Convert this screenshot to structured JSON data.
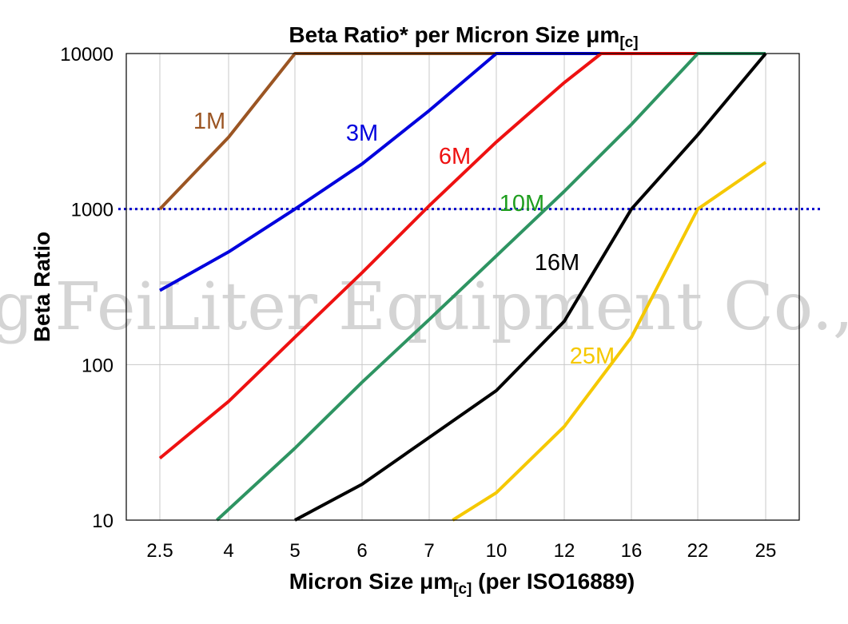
{
  "watermark": "g FeiLiter Equipment Co.,",
  "chart_data": {
    "type": "line",
    "title_main": "Beta Ratio* per Micron Size ",
    "title_unit": "μm",
    "title_sub": "[c]",
    "xlabel_main": "Micron Size ",
    "xlabel_unit": "μm",
    "xlabel_sub": "[c]",
    "xlabel_tail": " (per ISO16889)",
    "ylabel": "Beta Ratio",
    "y_scale": "log",
    "ylim": [
      10,
      10000
    ],
    "y_ticks": [
      "10",
      "100",
      "1000",
      "10000"
    ],
    "y_tick_values": [
      10,
      100,
      1000,
      10000
    ],
    "categories": [
      "2.5",
      "4",
      "5",
      "6",
      "7",
      "10",
      "12",
      "16",
      "22",
      "25"
    ],
    "x_axis_note": "categorical positions 0-9",
    "grid": true,
    "reference_line": {
      "value": 1000,
      "color": "#0000cc",
      "style": "dotted"
    },
    "series": [
      {
        "name": "1M",
        "color": "#9b5523",
        "points": [
          [
            0,
            1000
          ],
          [
            1,
            2900
          ],
          [
            2,
            10000
          ],
          [
            5,
            10000
          ]
        ]
      },
      {
        "name": "3M",
        "color": "#0000dd",
        "points": [
          [
            0,
            300
          ],
          [
            1,
            530
          ],
          [
            2,
            1000
          ],
          [
            3,
            1950
          ],
          [
            4,
            4300
          ],
          [
            5,
            10000
          ],
          [
            8,
            10000
          ]
        ]
      },
      {
        "name": "6M",
        "color": "#ee1111",
        "points": [
          [
            0,
            25
          ],
          [
            1,
            58
          ],
          [
            2,
            150
          ],
          [
            3,
            390
          ],
          [
            4,
            1050
          ],
          [
            5,
            2700
          ],
          [
            6,
            6500
          ],
          [
            6.55,
            10000
          ],
          [
            9,
            10000
          ]
        ]
      },
      {
        "name": "10M",
        "color": "#2e9462",
        "points": [
          [
            0.83,
            10
          ],
          [
            2,
            29
          ],
          [
            3,
            77
          ],
          [
            4,
            195
          ],
          [
            5,
            500
          ],
          [
            6,
            1300
          ],
          [
            7,
            3500
          ],
          [
            8,
            10000
          ],
          [
            9,
            10000
          ]
        ]
      },
      {
        "name": "16M",
        "color": "#000000",
        "points": [
          [
            2,
            10
          ],
          [
            3,
            17
          ],
          [
            4,
            34
          ],
          [
            5,
            68
          ],
          [
            6,
            190
          ],
          [
            7,
            1000
          ],
          [
            8,
            3000
          ],
          [
            9,
            10000
          ]
        ]
      },
      {
        "name": "25M",
        "color": "#f5c800",
        "points": [
          [
            4.35,
            10
          ],
          [
            5,
            15
          ],
          [
            6,
            40
          ],
          [
            7,
            150
          ],
          [
            8,
            1000
          ],
          [
            9,
            2000
          ]
        ]
      }
    ]
  }
}
